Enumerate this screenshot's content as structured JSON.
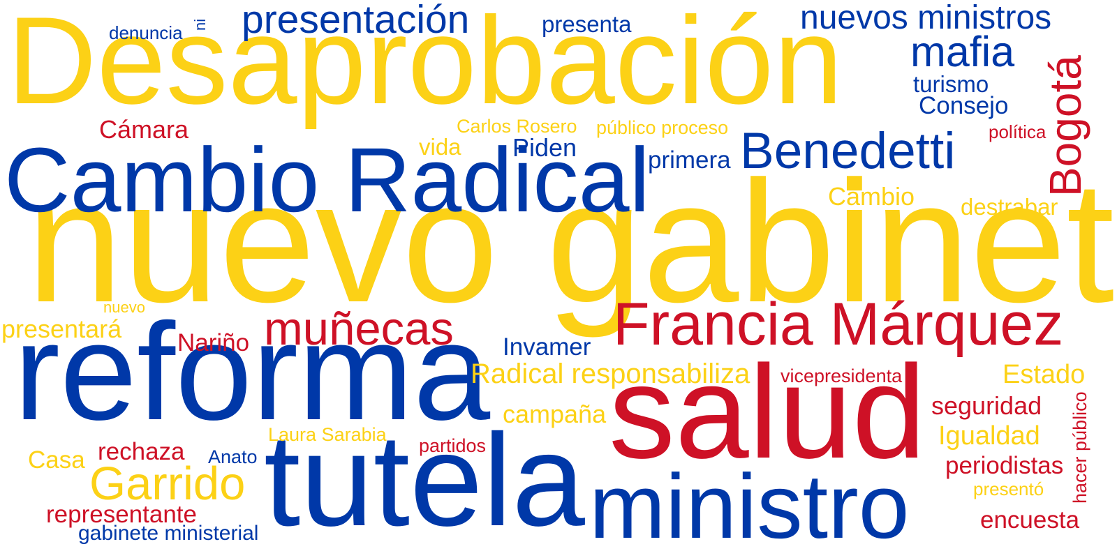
{
  "colors": {
    "yellow": "#fcd116",
    "blue": "#0038a8",
    "red": "#ce1126",
    "background": "#ffffff"
  },
  "words": {
    "w01": {
      "text": "Desaprobación",
      "color": "yellow"
    },
    "w02": {
      "text": "nuevo gabinete",
      "color": "yellow"
    },
    "w03": {
      "text": "Cambio Radical",
      "color": "blue"
    },
    "w04": {
      "text": "reforma",
      "color": "blue"
    },
    "w05": {
      "text": "salud",
      "color": "red"
    },
    "w06": {
      "text": "tutela",
      "color": "blue"
    },
    "w07": {
      "text": "ministro",
      "color": "blue"
    },
    "w08": {
      "text": "Francia Márquez",
      "color": "red"
    },
    "w09": {
      "text": "Benedetti",
      "color": "blue"
    },
    "w10": {
      "text": "presentación",
      "color": "blue"
    },
    "w11": {
      "text": "nuevos ministros",
      "color": "blue"
    },
    "w12": {
      "text": "mafia",
      "color": "blue"
    },
    "w13": {
      "text": "Bogotá",
      "color": "red"
    },
    "w14": {
      "text": "muñecas",
      "color": "red"
    },
    "w15": {
      "text": "Garrido",
      "color": "yellow"
    },
    "w16": {
      "text": "denuncia",
      "color": "blue"
    },
    "w17": {
      "text": "ni",
      "color": "blue"
    },
    "w18": {
      "text": "presenta",
      "color": "blue"
    },
    "w19": {
      "text": "turismo",
      "color": "blue"
    },
    "w20": {
      "text": "Consejo",
      "color": "blue"
    },
    "w21": {
      "text": "Cámara",
      "color": "red"
    },
    "w22": {
      "text": "Carlos Rosero",
      "color": "yellow"
    },
    "w23": {
      "text": "público proceso",
      "color": "yellow"
    },
    "w24": {
      "text": "política",
      "color": "red"
    },
    "w25": {
      "text": "vida",
      "color": "yellow"
    },
    "w26": {
      "text": "Piden",
      "color": "blue"
    },
    "w27": {
      "text": "primera",
      "color": "blue"
    },
    "w28": {
      "text": "Cambio",
      "color": "yellow"
    },
    "w29": {
      "text": "destrabar",
      "color": "yellow"
    },
    "w30": {
      "text": "nuevo",
      "color": "yellow"
    },
    "w31": {
      "text": "presentará",
      "color": "yellow"
    },
    "w32": {
      "text": "Nariño",
      "color": "red"
    },
    "w33": {
      "text": "Invamer",
      "color": "blue"
    },
    "w34": {
      "text": "Radical responsabiliza",
      "color": "yellow"
    },
    "w35": {
      "text": "vicepresidenta",
      "color": "red"
    },
    "w36": {
      "text": "Estado",
      "color": "yellow"
    },
    "w37": {
      "text": "campaña",
      "color": "yellow"
    },
    "w38": {
      "text": "seguridad",
      "color": "red"
    },
    "w39": {
      "text": "hacer público",
      "color": "red"
    },
    "w40": {
      "text": "Igualdad",
      "color": "yellow"
    },
    "w41": {
      "text": "Laura Sarabia",
      "color": "yellow"
    },
    "w42": {
      "text": "partidos",
      "color": "red"
    },
    "w43": {
      "text": "periodistas",
      "color": "red"
    },
    "w44": {
      "text": "Casa",
      "color": "yellow"
    },
    "w45": {
      "text": "rechaza",
      "color": "red"
    },
    "w46": {
      "text": "Anato",
      "color": "blue"
    },
    "w47": {
      "text": "presentó",
      "color": "yellow"
    },
    "w48": {
      "text": "representante",
      "color": "red"
    },
    "w49": {
      "text": "gabinete ministerial",
      "color": "blue"
    },
    "w50": {
      "text": "encuesta",
      "color": "red"
    }
  }
}
